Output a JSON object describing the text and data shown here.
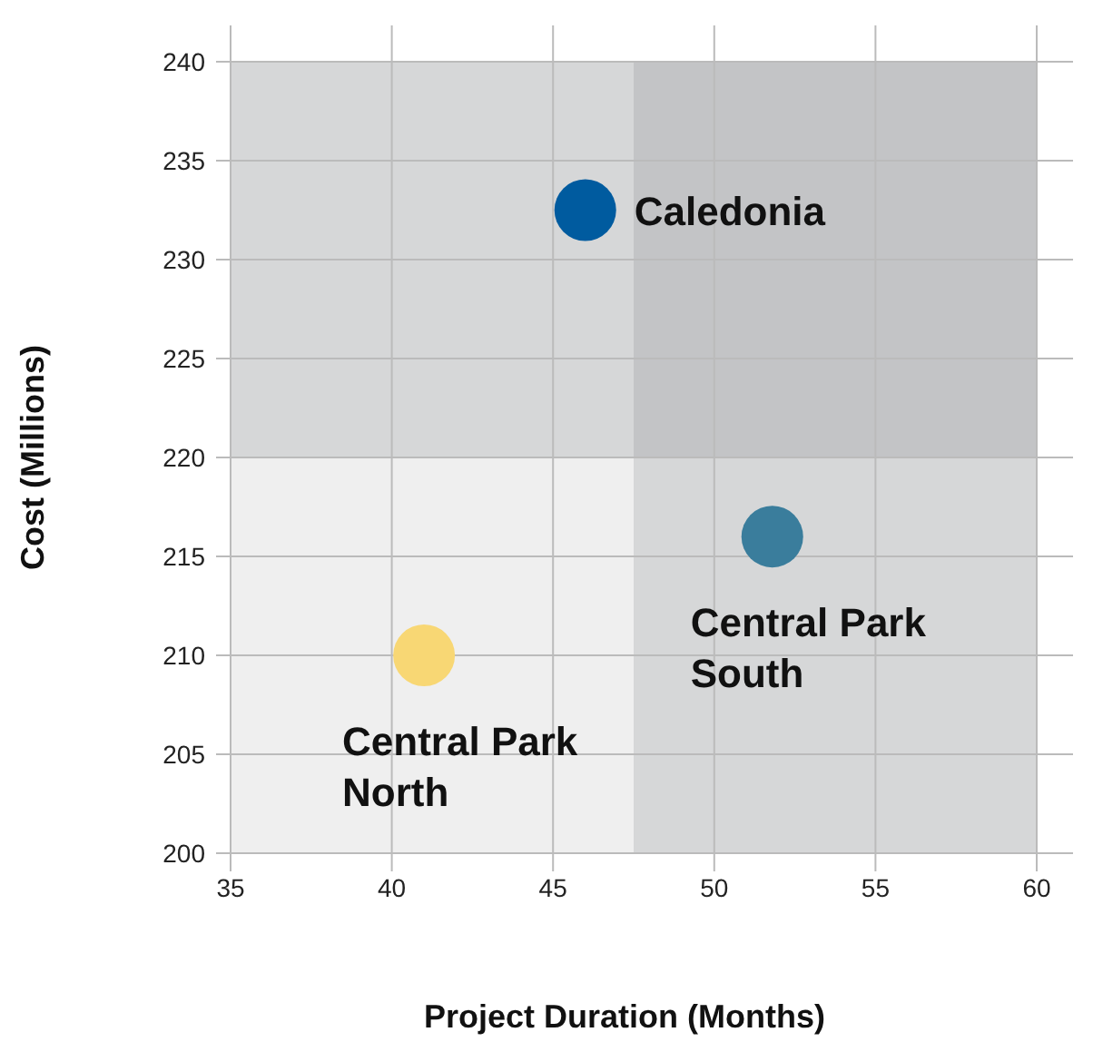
{
  "chart_data": {
    "type": "scatter",
    "xlabel": "Project Duration (Months)",
    "ylabel": "Cost (Millions)",
    "xlim": [
      35,
      60
    ],
    "xticks": [
      35,
      40,
      45,
      50,
      55,
      60
    ],
    "ylim": [
      200,
      240
    ],
    "yticks": [
      200,
      205,
      210,
      215,
      220,
      225,
      230,
      235,
      240
    ],
    "grid": true,
    "marker": "circle",
    "bands": [
      {
        "axis": "x",
        "from": 47.5,
        "to": 60,
        "color": "#7f8388"
      },
      {
        "axis": "y",
        "from": 220,
        "to": 240,
        "color": "#7f8388"
      }
    ],
    "series": [
      {
        "name": "Caledonia",
        "color": "#005b9f",
        "x": [
          46
        ],
        "values": [
          232.5
        ]
      },
      {
        "name": "Central Park South",
        "color": "#3a7d9c",
        "x": [
          51.8
        ],
        "values": [
          216
        ]
      },
      {
        "name": "Central Park North",
        "color": "#f8d774",
        "x": [
          41
        ],
        "values": [
          210
        ]
      }
    ]
  }
}
